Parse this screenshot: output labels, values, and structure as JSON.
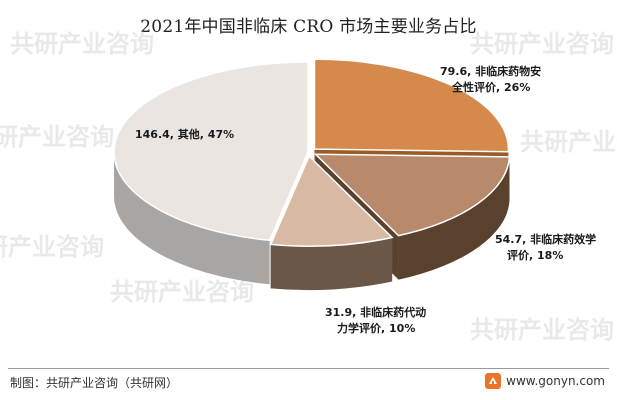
{
  "chart_data": {
    "type": "pie",
    "title": "2021年中国非临床 CRO 市场主要业务占比",
    "slices": [
      {
        "name": "非临床药物安全性评价",
        "value": 79.6,
        "percent": 26,
        "color": "#d58a4b",
        "side_color": "#9c5a25",
        "label_lines": [
          "79.6, 非临床药物安",
          "全性评价, 26%"
        ]
      },
      {
        "name": "非临床药效学评价",
        "value": 54.7,
        "percent": 18,
        "color": "#b8896a",
        "side_color": "#5a412e",
        "label_lines": [
          "54.7, 非临床药效学",
          "评价, 18%"
        ]
      },
      {
        "name": "非临床药代动力学评价",
        "value": 31.9,
        "percent": 10,
        "color": "#d8b9a3",
        "side_color": "#6a5748",
        "label_lines": [
          "31.9, 非临床药代动",
          "力学评价, 10%"
        ]
      },
      {
        "name": "其他",
        "value": 146.4,
        "percent": 47,
        "color": "#ebe5e2",
        "side_color": "#a8a5a3",
        "label_lines": [
          "146.4, 其他, 47%"
        ]
      }
    ]
  },
  "footer": {
    "source": "制图：共研产业咨询（共研网）",
    "website": "www.gonyn.com"
  },
  "watermark": {
    "brand": "共研产业咨询",
    "domain": "gonyn.com"
  },
  "icons": {
    "logo": "gonyn-logo-icon"
  }
}
